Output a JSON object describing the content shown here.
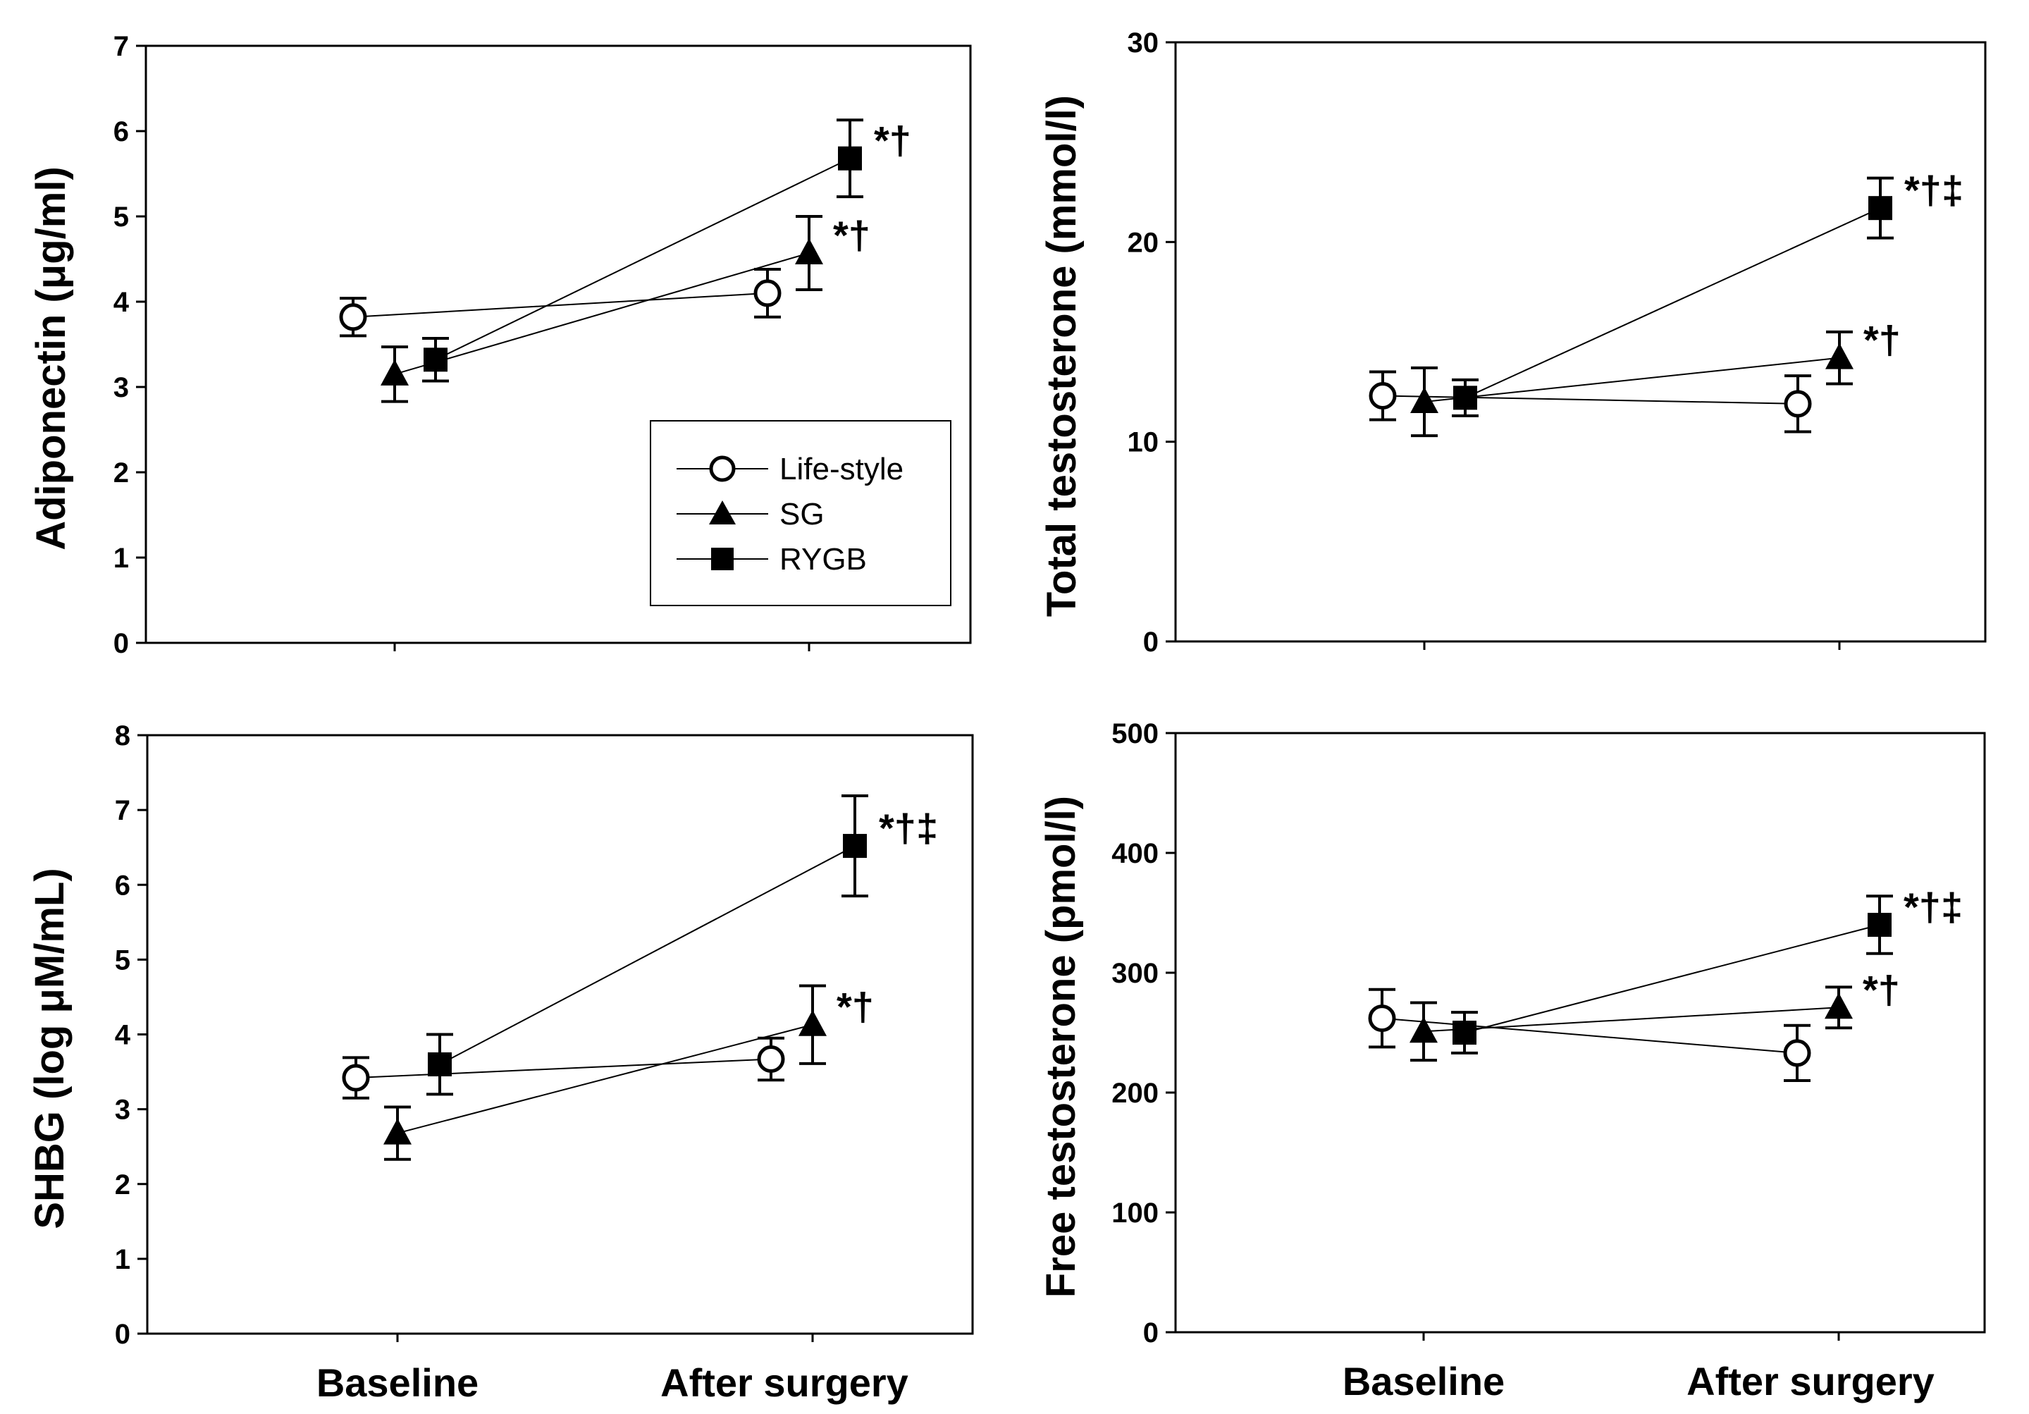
{
  "chart_data": [
    {
      "type": "line",
      "ylabel": "Adiponectin (μg/ml)",
      "xlabel": "",
      "categories": [
        "Baseline",
        "After surgery"
      ],
      "ylim": [
        0,
        7
      ],
      "yticks": [
        "0",
        "1",
        "2",
        "3",
        "4",
        "5",
        "6",
        "7"
      ],
      "show_x_tick_labels": false,
      "legend": {
        "position": "lower-right",
        "entries": [
          "Life-style",
          "SG",
          "RYGB"
        ]
      },
      "series": [
        {
          "name": "Life-style",
          "marker": "circle-open",
          "values": [
            3.82,
            4.1
          ],
          "err": [
            0.22,
            0.28
          ]
        },
        {
          "name": "SG",
          "marker": "triangle",
          "values": [
            3.15,
            4.57
          ],
          "err": [
            0.32,
            0.43
          ]
        },
        {
          "name": "RYGB",
          "marker": "square",
          "values": [
            3.32,
            5.68
          ],
          "err": [
            0.25,
            0.45
          ]
        }
      ],
      "annotations": [
        {
          "series": "SG",
          "text": "*†"
        },
        {
          "series": "RYGB",
          "text": "*†"
        }
      ]
    },
    {
      "type": "line",
      "ylabel": "Total testosterone (mmol/l)",
      "xlabel": "",
      "categories": [
        "Baseline",
        "After surgery"
      ],
      "ylim": [
        0,
        30
      ],
      "yticks": [
        "0",
        "10",
        "20",
        "30"
      ],
      "show_x_tick_labels": false,
      "series": [
        {
          "name": "Life-style",
          "marker": "circle-open",
          "values": [
            12.3,
            11.9
          ],
          "err": [
            1.2,
            1.4
          ]
        },
        {
          "name": "SG",
          "marker": "triangle",
          "values": [
            12.0,
            14.2
          ],
          "err": [
            1.7,
            1.3
          ]
        },
        {
          "name": "RYGB",
          "marker": "square",
          "values": [
            12.2,
            21.7
          ],
          "err": [
            0.9,
            1.5
          ]
        }
      ],
      "annotations": [
        {
          "series": "SG",
          "text": "*†"
        },
        {
          "series": "RYGB",
          "text": "*†‡"
        }
      ]
    },
    {
      "type": "line",
      "ylabel": "SHBG (log μM/mL)",
      "xlabel": "",
      "categories": [
        "Baseline",
        "After surgery"
      ],
      "ylim": [
        0,
        8
      ],
      "yticks": [
        "0",
        "1",
        "2",
        "3",
        "4",
        "5",
        "6",
        "7",
        "8"
      ],
      "show_x_tick_labels": true,
      "series": [
        {
          "name": "Life-style",
          "marker": "circle-open",
          "values": [
            3.42,
            3.67
          ],
          "err": [
            0.27,
            0.28
          ]
        },
        {
          "name": "SG",
          "marker": "triangle",
          "values": [
            2.68,
            4.13
          ],
          "err": [
            0.35,
            0.52
          ]
        },
        {
          "name": "RYGB",
          "marker": "square",
          "values": [
            3.6,
            6.52
          ],
          "err": [
            0.4,
            0.67
          ]
        }
      ],
      "annotations": [
        {
          "series": "SG",
          "text": "*†"
        },
        {
          "series": "RYGB",
          "text": "*†‡"
        }
      ]
    },
    {
      "type": "line",
      "ylabel": "Free testosterone (pmol/l)",
      "xlabel": "",
      "categories": [
        "Baseline",
        "After surgery"
      ],
      "ylim": [
        0,
        500
      ],
      "yticks": [
        "0",
        "100",
        "200",
        "300",
        "400",
        "500"
      ],
      "show_x_tick_labels": true,
      "series": [
        {
          "name": "Life-style",
          "marker": "circle-open",
          "values": [
            262,
            233
          ],
          "err": [
            24,
            23
          ]
        },
        {
          "name": "SG",
          "marker": "triangle",
          "values": [
            251,
            271
          ],
          "err": [
            24,
            17
          ]
        },
        {
          "name": "RYGB",
          "marker": "square",
          "values": [
            250,
            340
          ],
          "err": [
            17,
            24
          ]
        }
      ],
      "annotations": [
        {
          "series": "SG",
          "text": "*†"
        },
        {
          "series": "RYGB",
          "text": "*†‡"
        }
      ]
    }
  ]
}
